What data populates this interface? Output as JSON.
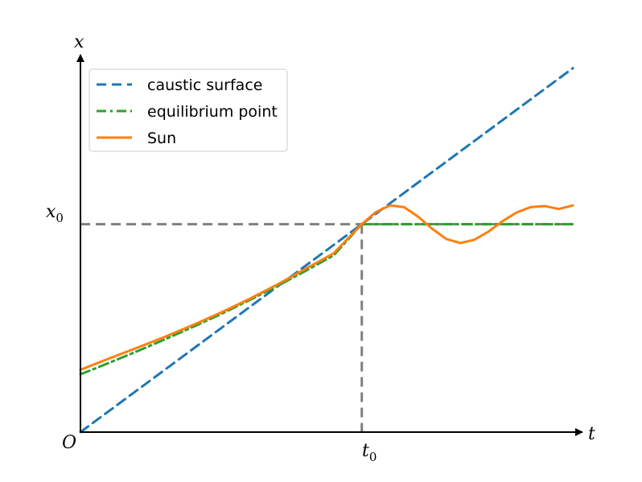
{
  "chart_data": {
    "type": "line",
    "title": "",
    "xlabel": "t",
    "ylabel": "x",
    "origin_label": "O",
    "xtick_label": {
      "main": "t",
      "sub": "0"
    },
    "ytick_label": {
      "main": "x",
      "sub": "0"
    },
    "x_range": [
      0,
      1.75
    ],
    "y_range": [
      0,
      1.78
    ],
    "t0": 1.0,
    "x0": 1.0,
    "grid": false,
    "legend_position": "top-left",
    "reference_lines": {
      "color": "#808080",
      "style": "dashed"
    },
    "series": [
      {
        "name": "caustic surface",
        "color": "#1f77b4",
        "style": "dashed",
        "x": [
          0,
          1.75
        ],
        "y": [
          0,
          1.75
        ]
      },
      {
        "name": "equilibrium point",
        "color": "#2ca02c",
        "style": "dashdot",
        "x": [
          0,
          0.1,
          0.2,
          0.3,
          0.4,
          0.5,
          0.6,
          0.7,
          0.8,
          0.9,
          1.0,
          1.1,
          1.2,
          1.3,
          1.4,
          1.5,
          1.6,
          1.7,
          1.75
        ],
        "y": [
          0.278,
          0.332,
          0.388,
          0.446,
          0.506,
          0.568,
          0.634,
          0.703,
          0.775,
          0.85,
          1.0,
          1.0,
          1.0,
          1.0,
          1.0,
          1.0,
          1.0,
          1.0,
          1.0
        ]
      },
      {
        "name": "Sun",
        "color": "#ff7f0e",
        "style": "solid",
        "x": [
          0,
          0.1,
          0.2,
          0.3,
          0.4,
          0.5,
          0.6,
          0.7,
          0.8,
          0.9,
          1.0,
          1.05,
          1.1,
          1.15,
          1.2,
          1.25,
          1.3,
          1.35,
          1.4,
          1.45,
          1.5,
          1.55,
          1.6,
          1.65,
          1.7,
          1.75
        ],
        "y": [
          0.3,
          0.353,
          0.405,
          0.458,
          0.515,
          0.575,
          0.64,
          0.71,
          0.785,
          0.86,
          1.0,
          1.058,
          1.09,
          1.082,
          1.036,
          0.978,
          0.929,
          0.909,
          0.925,
          0.964,
          1.014,
          1.056,
          1.082,
          1.087,
          1.073,
          1.09
        ]
      }
    ]
  }
}
